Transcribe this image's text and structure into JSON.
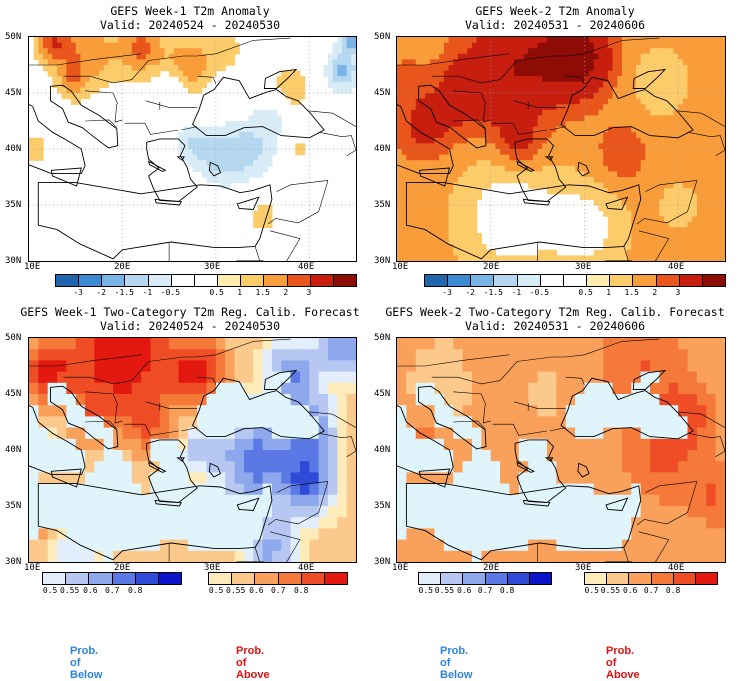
{
  "colors": {
    "anom": [
      "#2166ac",
      "#3c8ad1",
      "#78b4e6",
      "#b5d7f0",
      "#d8ecf8",
      "#ffffff",
      "#ffffff",
      "#fdedaf",
      "#fccb6a",
      "#f89d3a",
      "#e8561c",
      "#c71e10",
      "#8e0c06"
    ],
    "below": [
      "#e3eefc",
      "#b6c8f2",
      "#8ea8ee",
      "#5b78e4",
      "#2f4ad6",
      "#0a14c9"
    ],
    "above": [
      "#fdecb9",
      "#fcc98c",
      "#f9a05a",
      "#f57a3a",
      "#ef4d25",
      "#e3180f"
    ],
    "land_base": "#ffffff",
    "sea_light": "#dff4fb",
    "prob_below_color": "#2b84e0",
    "prob_above_color": "#e3100e"
  },
  "panels": [
    {
      "id": "p1",
      "title_line1": "GEFS Week-1 T2m Anomaly",
      "title_line2": "Valid: 20240524 - 20240530",
      "kind": "anomaly"
    },
    {
      "id": "p2",
      "title_line1": "GEFS Week-2 T2m Anomaly",
      "title_line2": "Valid: 20240531 - 20240606",
      "kind": "anomaly"
    },
    {
      "id": "p3",
      "title_line1": "GEFS Week-1 Two-Category T2m Reg. Calib. Forecast",
      "title_line2": "Valid: 20240524 - 20240530",
      "kind": "prob"
    },
    {
      "id": "p4",
      "title_line1": "GEFS Week-2 Two-Category T2m Reg. Calib. Forecast",
      "title_line2": "Valid: 20240531 - 20240606",
      "kind": "prob"
    }
  ],
  "axes": {
    "lat_labels": [
      "50N",
      "45N",
      "40N",
      "35N",
      "30N"
    ],
    "lon_labels": [
      "10E",
      "20E",
      "30E",
      "40E"
    ],
    "lat_range": [
      30,
      50
    ],
    "lon_range": [
      10,
      45
    ]
  },
  "anomaly_colorbar": {
    "ticks": [
      "-3",
      "-2",
      "-1.5",
      "-1",
      "-0.5",
      "0.5",
      "1",
      "1.5",
      "2",
      "3"
    ]
  },
  "prob_colorbar": {
    "ticks": [
      "0.5",
      "0.55",
      "0.6",
      "0.7",
      "0.8"
    ]
  },
  "legend": {
    "below": "Prob. of Below",
    "above": "Prob. of Above"
  }
}
